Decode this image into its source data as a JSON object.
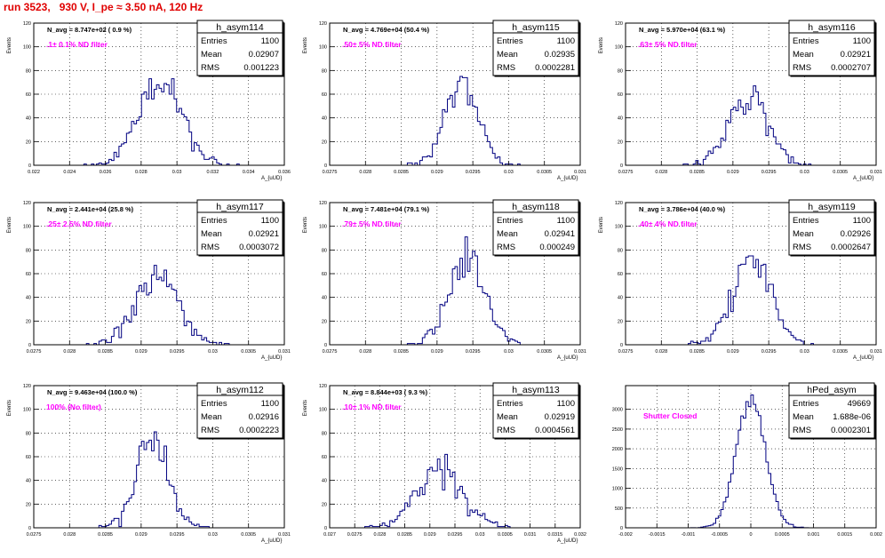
{
  "title": "run 3523,   930 V, I_pe ≈ 3.50 nA, 120 Hz",
  "colors": {
    "hist": "#000080",
    "annot": "#ff00ff",
    "title": "#e00000",
    "grid": "#000000"
  },
  "chart_data": [
    {
      "type": "bar",
      "name": "h_asym114",
      "stats": [
        [
          "Entries",
          "1100"
        ],
        [
          "Mean",
          "0.02907"
        ],
        [
          "RMS",
          "0.001223"
        ]
      ],
      "navg": "N_avg = 8.747e+02 ( 0.9 %)",
      "filter": ".1± 0.1% ND filter",
      "ylabel": "Events",
      "xlabel": "A_{uUD}",
      "xlim": [
        0.022,
        0.036
      ],
      "ylim": [
        0,
        120
      ],
      "xticks": [
        0.022,
        0.024,
        0.026,
        0.028,
        0.03,
        0.032,
        0.034,
        0.036
      ],
      "xticklabels": [
        "0.022",
        "0.024",
        "0.026",
        "0.028",
        "0.03",
        "0.032",
        "0.034",
        "0.036"
      ],
      "yticks": [
        0,
        20,
        40,
        60,
        80,
        100,
        120
      ],
      "mean": 0.02907,
      "sigma": 0.00122,
      "peak": 66,
      "bins": 100,
      "seed": 114
    },
    {
      "type": "bar",
      "name": "h_asym115",
      "stats": [
        [
          "Entries",
          "1100"
        ],
        [
          "Mean",
          "0.02935"
        ],
        [
          "RMS",
          "0.0002281"
        ]
      ],
      "navg": "N_avg = 4.769e+04 (50.4 %)",
      "filter": ".50± 5% ND filter",
      "ylabel": "Events",
      "xlabel": "A_{uUD}",
      "xlim": [
        0.0275,
        0.031
      ],
      "ylim": [
        0,
        120
      ],
      "xticks": [
        0.0275,
        0.028,
        0.0285,
        0.029,
        0.0295,
        0.03,
        0.0305,
        0.031
      ],
      "xticklabels": [
        "0.0275",
        "0.028",
        "0.0285",
        "0.029",
        "0.0295",
        "0.03",
        "0.0305",
        "0.031"
      ],
      "yticks": [
        0,
        20,
        40,
        60,
        80,
        100,
        120
      ],
      "mean": 0.02935,
      "sigma": 0.000228,
      "peak": 68,
      "bins": 100,
      "seed": 115
    },
    {
      "type": "bar",
      "name": "h_asym116",
      "stats": [
        [
          "Entries",
          "1100"
        ],
        [
          "Mean",
          "0.02921"
        ],
        [
          "RMS",
          "0.0002707"
        ]
      ],
      "navg": "N_avg = 5.970e+04 (63.1 %)",
      "filter": ".63± 5% ND filter",
      "ylabel": "Events",
      "xlabel": "A_{uUD}",
      "xlim": [
        0.0275,
        0.031
      ],
      "ylim": [
        0,
        120
      ],
      "xticks": [
        0.0275,
        0.028,
        0.0285,
        0.029,
        0.0295,
        0.03,
        0.0305,
        0.031
      ],
      "xticklabels": [
        "0.0275",
        "0.028",
        "0.0285",
        "0.029",
        "0.0295",
        "0.03",
        "0.0305",
        "0.031"
      ],
      "yticks": [
        0,
        20,
        40,
        60,
        80,
        100,
        120
      ],
      "mean": 0.02921,
      "sigma": 0.00027,
      "peak": 60,
      "bins": 100,
      "seed": 116
    },
    {
      "type": "bar",
      "name": "h_asym117",
      "stats": [
        [
          "Entries",
          "1100"
        ],
        [
          "Mean",
          "0.02921"
        ],
        [
          "RMS",
          "0.0003072"
        ]
      ],
      "navg": "N_avg = 2.441e+04 (25.8 %)",
      "filter": ".25± 2.5% ND filter",
      "ylabel": "Events",
      "xlabel": "A_{uUD}",
      "xlim": [
        0.0275,
        0.031
      ],
      "ylim": [
        0,
        120
      ],
      "xticks": [
        0.0275,
        0.028,
        0.0285,
        0.029,
        0.0295,
        0.03,
        0.0305,
        0.031
      ],
      "xticklabels": [
        "0.0275",
        "0.028",
        "0.0285",
        "0.029",
        "0.0295",
        "0.03",
        "0.0305",
        "0.031"
      ],
      "yticks": [
        0,
        20,
        40,
        60,
        80,
        100,
        120
      ],
      "mean": 0.02921,
      "sigma": 0.000307,
      "peak": 57,
      "bins": 100,
      "seed": 117
    },
    {
      "type": "bar",
      "name": "h_asym118",
      "stats": [
        [
          "Entries",
          "1100"
        ],
        [
          "Mean",
          "0.02941"
        ],
        [
          "RMS",
          "0.000249"
        ]
      ],
      "navg": "N_avg = 7.481e+04 (79.1 %)",
      "filter": ".79± 5% ND filter",
      "ylabel": "Events",
      "xlabel": "A_{uUD}",
      "xlim": [
        0.0275,
        0.031
      ],
      "ylim": [
        0,
        120
      ],
      "xticks": [
        0.0275,
        0.028,
        0.0285,
        0.029,
        0.0295,
        0.03,
        0.0305,
        0.031
      ],
      "xticklabels": [
        "0.0275",
        "0.028",
        "0.0285",
        "0.029",
        "0.0295",
        "0.03",
        "0.0305",
        "0.031"
      ],
      "yticks": [
        0,
        20,
        40,
        60,
        80,
        100,
        120
      ],
      "mean": 0.02941,
      "sigma": 0.000249,
      "peak": 74,
      "bins": 100,
      "seed": 118
    },
    {
      "type": "bar",
      "name": "h_asym119",
      "stats": [
        [
          "Entries",
          "1100"
        ],
        [
          "Mean",
          "0.02926"
        ],
        [
          "RMS",
          "0.0002647"
        ]
      ],
      "navg": "N_avg = 3.786e+04 (40.0 %)",
      "filter": ".40± 4% ND filter",
      "ylabel": "Events",
      "xlabel": "A_{uUD}",
      "xlim": [
        0.0275,
        0.031
      ],
      "ylim": [
        0,
        120
      ],
      "xticks": [
        0.0275,
        0.028,
        0.0285,
        0.029,
        0.0295,
        0.03,
        0.0305,
        0.031
      ],
      "xticklabels": [
        "0.0275",
        "0.028",
        "0.0285",
        "0.029",
        "0.0295",
        "0.03",
        "0.0305",
        "0.031"
      ],
      "yticks": [
        0,
        20,
        40,
        60,
        80,
        100,
        120
      ],
      "mean": 0.02926,
      "sigma": 0.000265,
      "peak": 70,
      "bins": 100,
      "seed": 119
    },
    {
      "type": "bar",
      "name": "h_asym112",
      "stats": [
        [
          "Entries",
          "1100"
        ],
        [
          "Mean",
          "0.02916"
        ],
        [
          "RMS",
          "0.0002223"
        ]
      ],
      "navg": "N_avg = 9.463e+04 (100.0 %)",
      "filter": "100% (No filter)",
      "ylabel": "Events",
      "xlabel": "A_{uUD}",
      "xlim": [
        0.0275,
        0.031
      ],
      "ylim": [
        0,
        120
      ],
      "xticks": [
        0.0275,
        0.028,
        0.0285,
        0.029,
        0.0295,
        0.03,
        0.0305,
        0.031
      ],
      "xticklabels": [
        "0.0275",
        "0.028",
        "0.0285",
        "0.029",
        "0.0295",
        "0.03",
        "0.0305",
        "0.031"
      ],
      "yticks": [
        0,
        20,
        40,
        60,
        80,
        100,
        120
      ],
      "mean": 0.02916,
      "sigma": 0.000222,
      "peak": 77,
      "bins": 100,
      "seed": 112
    },
    {
      "type": "bar",
      "name": "h_asym113",
      "stats": [
        [
          "Entries",
          "1100"
        ],
        [
          "Mean",
          "0.02919"
        ],
        [
          "RMS",
          "0.0004561"
        ]
      ],
      "navg": "N_avg = 8.844e+03 ( 9.3 %)",
      "filter": ".10± 1% ND filter",
      "ylabel": "Events",
      "xlabel": "A_{uUD}",
      "xlim": [
        0.027,
        0.032
      ],
      "ylim": [
        0,
        120
      ],
      "xticks": [
        0.027,
        0.0275,
        0.028,
        0.0285,
        0.029,
        0.0295,
        0.03,
        0.0305,
        0.031,
        0.0315,
        0.032
      ],
      "xticklabels": [
        "0.027",
        "0.0275",
        "0.028",
        "0.0285",
        "0.029",
        "0.0295",
        "0.03",
        "0.0305",
        "0.031",
        "0.0315",
        "0.032"
      ],
      "yticks": [
        0,
        20,
        40,
        60,
        80,
        100,
        120
      ],
      "mean": 0.02919,
      "sigma": 0.000456,
      "peak": 52,
      "bins": 100,
      "seed": 113
    },
    {
      "type": "bar",
      "name": "hPed_asym",
      "stats": [
        [
          "Entries",
          "49669"
        ],
        [
          "Mean",
          "1.688e-06"
        ],
        [
          "RMS",
          "0.0002301"
        ]
      ],
      "navg": "",
      "filter": "Shutter Closed",
      "ylabel": "",
      "xlabel": "",
      "xlim": [
        -0.002,
        0.002
      ],
      "ylim": [
        0,
        3600
      ],
      "xticks": [
        -0.002,
        -0.0015,
        -0.001,
        -0.0005,
        0,
        0.0005,
        0.001,
        0.0015,
        0.002
      ],
      "xticklabels": [
        "-0.002",
        "-0.0015",
        "-0.001",
        "-0.0005",
        "0",
        "0.0005",
        "0.001",
        "0.0015",
        "0.002"
      ],
      "yticks": [
        0,
        500,
        1000,
        1500,
        2000,
        2500,
        3000
      ],
      "mean": 0.0,
      "sigma": 0.00023,
      "peak": 3350,
      "bins": 100,
      "seed": 200
    }
  ]
}
